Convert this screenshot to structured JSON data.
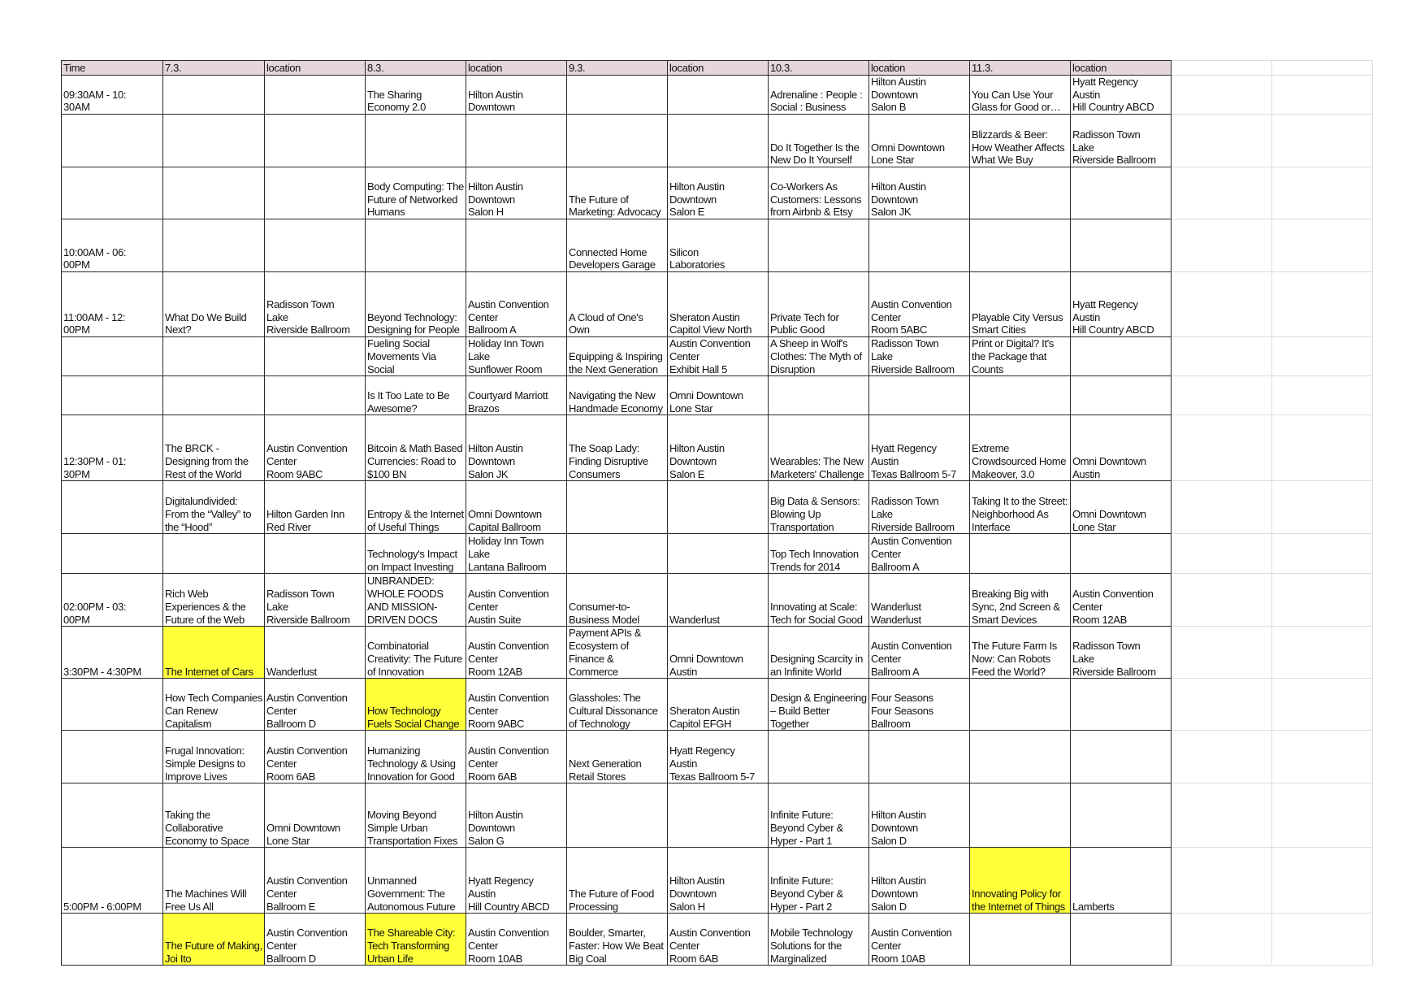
{
  "header": [
    "Time",
    "7.3.",
    "location",
    "8.3.",
    "location",
    "9.3.",
    "location",
    "10.3.",
    "location",
    "11.3.",
    "location"
  ],
  "rows": [
    [
      "09:30AM - 10:\n30AM",
      "",
      "",
      "The Sharing Economy 2.0",
      "Hilton Austin\nDowntown",
      "",
      "",
      "Adrenaline : People : Social : Business",
      "Hilton Austin\nDowntown\nSalon B",
      "You Can Use Your Glass for Good or…",
      "Hyatt Regency\nAustin\nHill Country ABCD"
    ],
    [
      "",
      "",
      "",
      "",
      "",
      "",
      "",
      "Do It Together Is the New Do It Yourself",
      "Omni Downtown\nLone Star",
      "Blizzards & Beer: How Weather Affects What We Buy",
      "Radisson Town\nLake\nRiverside Ballroom"
    ],
    [
      "",
      "",
      "",
      "Body Computing: The Future of Networked Humans",
      "Hilton Austin\nDowntown\nSalon H",
      "The Future of Marketing: Advocacy",
      "Hilton Austin\nDowntown\nSalon E",
      "Co-Workers As Customers: Lessons from Airbnb & Etsy",
      "Hilton Austin\nDowntown\nSalon JK",
      "",
      ""
    ],
    [
      "10:00AM - 06:\n00PM",
      "",
      "",
      "",
      "",
      "Connected Home Developers Garage",
      "Silicon\nLaboratories",
      "",
      "",
      "",
      ""
    ],
    [
      "11:00AM - 12:\n00PM",
      "What Do We Build Next?",
      "Radisson Town\nLake\nRiverside Ballroom",
      "Beyond Technology: Designing for People",
      "Austin Convention\nCenter\nBallroom A",
      "A Cloud of One's Own",
      "Sheraton Austin\nCapitol View North",
      "Private Tech for Public Good",
      "Austin Convention\nCenter\nRoom 5ABC",
      "Playable City Versus Smart Cities",
      "Hyatt Regency\nAustin\nHill Country ABCD"
    ],
    [
      "",
      "",
      "",
      "Fueling Social Movements Via Social",
      "Holiday Inn Town\nLake\nSunflower Room",
      "Equipping & Inspiring the Next Generation",
      "Austin Convention\nCenter\nExhibit Hall 5",
      "A Sheep in Wolf's Clothes: The Myth of Disruption",
      "Radisson Town\nLake\nRiverside Ballroom",
      "Print or Digital? It's the Package that Counts",
      ""
    ],
    [
      "",
      "",
      "",
      "Is It Too Late to Be Awesome?",
      "Courtyard Marriott\nBrazos",
      "Navigating the New Handmade Economy",
      "Omni Downtown\nLone Star",
      "",
      "",
      "",
      ""
    ],
    [
      "12:30PM - 01:\n30PM",
      "The BRCK - Designing from the Rest of the World",
      "Austin Convention\nCenter\nRoom 9ABC",
      "Bitcoin & Math Based Currencies: Road to $100 BN",
      "Hilton Austin\nDowntown\nSalon JK",
      "The Soap Lady: Finding Disruptive Consumers",
      "Hilton Austin\nDowntown\nSalon E",
      "Wearables: The New Marketers' Challenge",
      "Hyatt Regency\nAustin\nTexas Ballroom 5-7",
      "Extreme Crowdsourced Home Makeover, 3.0",
      "Omni Downtown\nAustin"
    ],
    [
      "",
      "Digitalundivided: From the “Valley” to the “Hood”",
      "Hilton Garden Inn\nRed River",
      "Entropy & the Internet of Useful Things",
      "Omni Downtown\nCapital Ballroom",
      "",
      "",
      "Big Data & Sensors: Blowing Up Transportation",
      "Radisson Town\nLake\nRiverside Ballroom",
      "Taking It to the Street: Neighborhood As Interface",
      "Omni Downtown\nLone Star"
    ],
    [
      "",
      "",
      "",
      "Technology's Impact on Impact Investing",
      "Holiday Inn Town\nLake\nLantana Ballroom",
      "",
      "",
      "Top Tech Innovation Trends for 2014",
      "Austin Convention\nCenter\nBallroom A",
      "",
      ""
    ],
    [
      "02:00PM - 03:\n00PM",
      "Rich Web Experiences & the Future of the Web",
      "Radisson Town\nLake\nRiverside Ballroom",
      "UNBRANDED: WHOLE FOODS AND MISSION-DRIVEN DOCS",
      "Austin Convention\nCenter\nAustin Suite",
      "Consumer-to-Business Model",
      "Wanderlust",
      "Innovating at Scale: Tech for Social Good",
      "Wanderlust\nWanderlust",
      "Breaking Big with Sync, 2nd Screen & Smart Devices",
      "Austin Convention\nCenter\nRoom 12AB"
    ],
    [
      "3:30PM - 4:30PM",
      "The Internet of Cars",
      "Wanderlust",
      "Combinatorial Creativity: The Future of Innovation",
      "Austin Convention\nCenter\nRoom 12AB",
      "Payment APIs & Ecosystem of Finance & Commerce",
      "Omni Downtown\nAustin",
      "Designing Scarcity in an Infinite World",
      "Austin Convention\nCenter\nBallroom A",
      "The Future Farm Is Now: Can Robots Feed the World?",
      "Radisson Town\nLake\nRiverside Ballroom"
    ],
    [
      "",
      "How Tech Companies Can Renew Capitalism",
      "Austin Convention\nCenter\nBallroom D",
      "How Technology Fuels Social Change",
      "Austin Convention\nCenter\nRoom 9ABC",
      "Glassholes: The Cultural Dissonance of Technology",
      "Sheraton Austin\nCapitol EFGH",
      "Design & Engineering – Build Better Together",
      "Four Seasons\nFour Seasons\nBallroom",
      "",
      ""
    ],
    [
      "",
      "Frugal Innovation: Simple Designs to Improve Lives",
      "Austin Convention\nCenter\nRoom 6AB",
      "Humanizing Technology & Using Innovation for Good",
      "Austin Convention\nCenter\nRoom 6AB",
      "Next Generation Retail Stores",
      "Hyatt Regency\nAustin\nTexas Ballroom 5-7",
      "",
      "",
      "",
      ""
    ],
    [
      "",
      "Taking the Collaborative Economy to Space",
      "Omni Downtown\nLone Star",
      "Moving Beyond Simple Urban Transportation Fixes",
      "Hilton Austin\nDowntown\nSalon G",
      "",
      "",
      "Infinite Future: Beyond Cyber & Hyper - Part 1",
      "Hilton Austin\nDowntown\nSalon D",
      "",
      ""
    ],
    [
      "5:00PM - 6:00PM",
      "The Machines Will Free Us All",
      "Austin Convention\nCenter\nBallroom E",
      "Unmanned Government: The Autonomous Future",
      "Hyatt Regency\nAustin\nHill Country ABCD",
      "The Future of Food Processing",
      "Hilton Austin\nDowntown\nSalon H",
      "Infinite Future: Beyond Cyber & Hyper - Part 2",
      "Hilton Austin\nDowntown\nSalon D",
      "Innovating Policy for the Internet of Things",
      "Lamberts"
    ],
    [
      "",
      "The Future of Making, Joi Ito",
      "Austin Convention\nCenter\nBallroom D",
      "The Shareable City: Tech Transforming Urban Life",
      "Austin Convention\nCenter\nRoom 10AB",
      "Boulder, Smarter, Faster: How We Beat Big Coal",
      "Austin Convention\nCenter\nRoom 6AB",
      "Mobile Technology Solutions for the Marginalized",
      "Austin Convention\nCenter\nRoom 10AB",
      "",
      ""
    ]
  ],
  "highlighted_cells": [
    [
      11,
      1
    ],
    [
      12,
      3
    ],
    [
      15,
      9
    ],
    [
      16,
      1
    ],
    [
      16,
      3
    ]
  ],
  "colors": {
    "header_fill": "#e5d6de",
    "highlight": "#ffff3a",
    "grid": "#2a2a2a"
  }
}
